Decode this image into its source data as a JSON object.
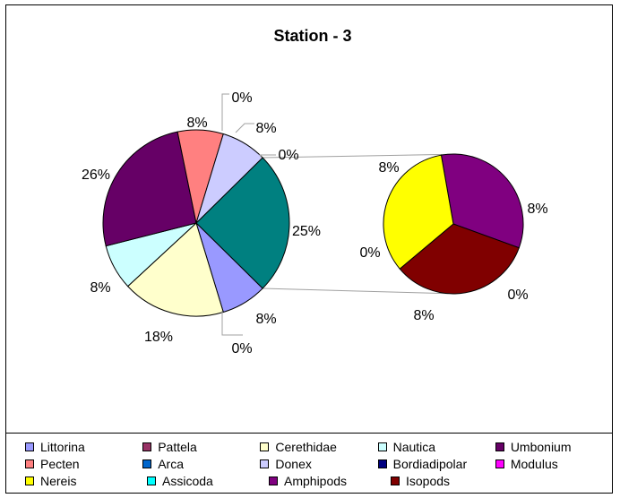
{
  "chart_data": {
    "type": "pie",
    "subtype": "pie-of-pie",
    "title": "Station - 3",
    "series": [
      {
        "name": "Littorina",
        "value": 8,
        "label": "8%",
        "color": "#9999ff",
        "pie": "main"
      },
      {
        "name": "Pattela",
        "value": 0,
        "label": "0%",
        "color": "#993366",
        "pie": "main"
      },
      {
        "name": "Cerethidae",
        "value": 18,
        "label": "18%",
        "color": "#ffffcc",
        "pie": "main"
      },
      {
        "name": "Nautica",
        "value": 8,
        "label": "8%",
        "color": "#ccffff",
        "pie": "main"
      },
      {
        "name": "Umbonium",
        "value": 26,
        "label": "26%",
        "color": "#660066",
        "pie": "main"
      },
      {
        "name": "Pecten",
        "value": 8,
        "label": "8%",
        "color": "#ff8080",
        "pie": "main"
      },
      {
        "name": "Arca",
        "value": 0,
        "label": "0%",
        "color": "#0066cc",
        "pie": "main"
      },
      {
        "name": "Donex",
        "value": 8,
        "label": "8%",
        "color": "#ccccff",
        "pie": "main"
      },
      {
        "name": "Bordiadipolar",
        "value": 0,
        "label": "0%",
        "color": "#000080",
        "pie": "secondary"
      },
      {
        "name": "Modulus",
        "value": 0,
        "label": "0%",
        "color": "#ff00ff",
        "pie": "secondary"
      },
      {
        "name": "Nereis",
        "value": 8,
        "label": "8%",
        "color": "#ffff00",
        "pie": "secondary"
      },
      {
        "name": "Assicoda",
        "value": 0,
        "label": "0%",
        "color": "#00ffff",
        "pie": "secondary"
      },
      {
        "name": "Amphipods",
        "value": 8,
        "label": "8%",
        "color": "#800080",
        "pie": "secondary"
      },
      {
        "name": "Isopods",
        "value": 8,
        "label": "8%",
        "color": "#800000",
        "pie": "secondary"
      }
    ],
    "other_slice": {
      "value": 25,
      "label": "25%",
      "color": "#008080"
    },
    "legend": {
      "placement": "bottom",
      "rows": [
        [
          "Littorina",
          "Pattela",
          "Cerethidae",
          "Nautica",
          "Umbonium"
        ],
        [
          "Pecten",
          "Arca",
          "Donex",
          "Bordiadipolar",
          "Modulus"
        ],
        [
          "Nereis",
          "Assicoda",
          "Amphipods",
          "Isopods"
        ]
      ]
    }
  }
}
